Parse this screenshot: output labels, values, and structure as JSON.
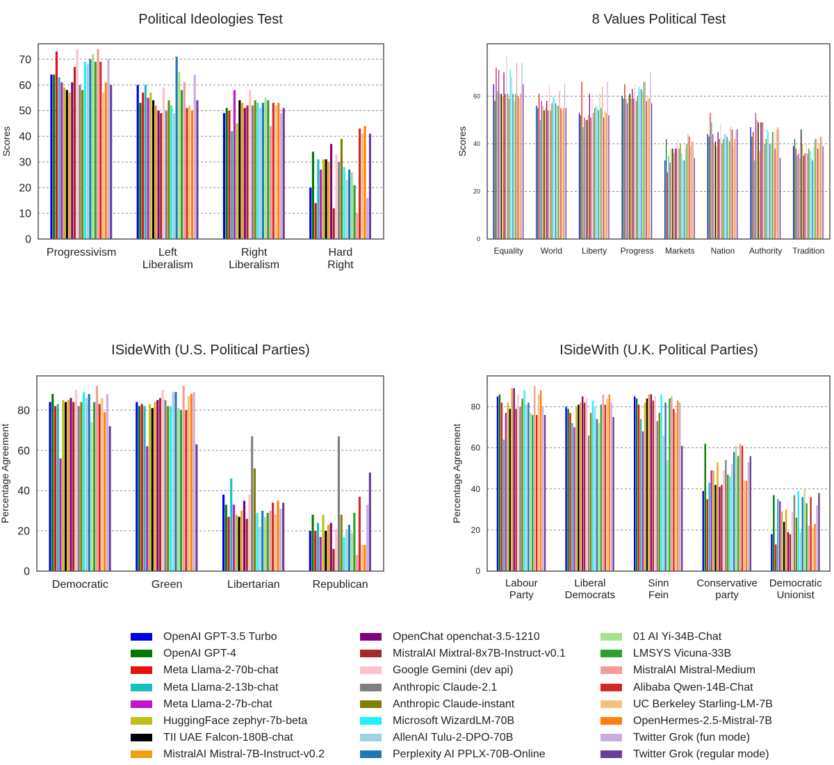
{
  "series_names": [
    "OpenAI GPT-3.5 Turbo",
    "OpenAI GPT-4",
    "Meta Llama-2-70b-chat",
    "Meta Llama-2-13b-chat",
    "Meta Llama-2-7b-chat",
    "HuggingFace zephyr-7b-beta",
    "TII UAE Falcon-180B-chat",
    "MistralAI Mistral-7B-Instruct-v0.2",
    "OpenChat openchat-3.5-1210",
    "MistralAI Mixtral-8x7B-Instruct-v0.1",
    "Google Gemini (dev api)",
    "Anthropic Claude-2.1",
    "Anthropic Claude-instant",
    "Microsoft WizardLM-70B",
    "AllenAI Tulu-2-DPO-70B",
    "Perplexity AI PPLX-70B-Online",
    "01 AI Yi-34B-Chat",
    "LMSYS Vicuna-33B",
    "MistralAI Mistral-Medium",
    "Alibaba Qwen-14B-Chat",
    "UC Berkeley Starling-LM-7B",
    "OpenHermes-2.5-Mistral-7B",
    "Twitter Grok (fun mode)",
    "Twitter Grok (regular mode)"
  ],
  "series_colors": [
    "#0000e6",
    "#007a00",
    "#e61010",
    "#17bfbf",
    "#c018c8",
    "#bfbf17",
    "#000000",
    "#f2a016",
    "#7f007f",
    "#a52a2a",
    "#ffc0cb",
    "#7f7f7f",
    "#808000",
    "#1ef2f2",
    "#a0cfe6",
    "#1f77b4",
    "#a8e08c",
    "#2ca02c",
    "#f59a9a",
    "#d62728",
    "#f5c078",
    "#ff7f0e",
    "#c8aee0",
    "#6a3d9a"
  ],
  "chart_data": [
    {
      "id": "political-ideologies",
      "type": "bar",
      "title": "Political Ideologies Test",
      "ylabel": "Scores",
      "ylim": [
        0,
        76
      ],
      "yticks": [
        0,
        10,
        20,
        30,
        40,
        50,
        60,
        70
      ],
      "grid": true,
      "categories": [
        [
          "Progressivism"
        ],
        [
          "Left",
          "Liberalism"
        ],
        [
          "Right",
          "Liberalism"
        ],
        [
          "Hard",
          "Right"
        ]
      ],
      "values": [
        [
          64,
          60,
          49,
          20
        ],
        [
          64,
          53,
          51,
          34
        ],
        [
          73,
          57,
          50,
          14
        ],
        [
          63,
          60,
          42,
          31
        ],
        [
          61,
          55,
          58,
          27
        ],
        [
          59,
          57,
          45,
          31
        ],
        [
          58,
          54,
          54,
          31
        ],
        [
          57,
          52,
          53,
          30
        ],
        [
          61,
          50,
          51,
          37
        ],
        [
          67,
          49,
          52,
          12
        ],
        [
          74,
          59,
          58,
          33
        ],
        [
          60,
          50,
          52,
          30
        ],
        [
          58,
          54,
          54,
          39
        ],
        [
          69,
          52,
          53,
          28
        ],
        [
          68,
          49,
          51,
          23
        ],
        [
          70,
          71,
          53,
          27
        ],
        [
          72,
          65,
          55,
          26
        ],
        [
          69,
          58,
          54,
          21
        ],
        [
          74,
          61,
          44,
          10
        ],
        [
          69,
          51,
          53,
          43
        ],
        [
          57,
          52,
          52,
          41
        ],
        [
          61,
          50,
          53,
          44
        ],
        [
          70,
          64,
          49,
          16
        ],
        [
          60,
          54,
          51,
          41
        ]
      ]
    },
    {
      "id": "eight-values",
      "type": "bar",
      "title": "8 Values Political Test",
      "ylabel": "Scores",
      "ylim": [
        0,
        82
      ],
      "yticks": [
        0,
        20,
        40,
        60
      ],
      "grid": true,
      "categories": [
        [
          "Equality"
        ],
        [
          "World"
        ],
        [
          "Liberty"
        ],
        [
          "Progress"
        ],
        [
          "Markets"
        ],
        [
          "Nation"
        ],
        [
          "Authority"
        ],
        [
          "Tradition"
        ]
      ],
      "values": [
        [
          65,
          56,
          53,
          60,
          33,
          44,
          47,
          39
        ],
        [
          58,
          55,
          52,
          59,
          42,
          43,
          43,
          42
        ],
        [
          72,
          61,
          66,
          65,
          28,
          53,
          45,
          38
        ],
        [
          62,
          50,
          47,
          59,
          35,
          49,
          33,
          35
        ],
        [
          71,
          58,
          51,
          57,
          32,
          44,
          53,
          36
        ],
        [
          61,
          56,
          50,
          60,
          38,
          40,
          50,
          34
        ],
        [
          61,
          54,
          50,
          61,
          38,
          41,
          49,
          46
        ],
        [
          60,
          55,
          52,
          59,
          36,
          39,
          37,
          40
        ],
        [
          70,
          58,
          61,
          63,
          38,
          45,
          49,
          35
        ],
        [
          61,
          54,
          51,
          59,
          38,
          42,
          49,
          36
        ],
        [
          77,
          65,
          59,
          65,
          42,
          48,
          49,
          40
        ],
        [
          61,
          54,
          53,
          58,
          38,
          40,
          40,
          36
        ],
        [
          59,
          57,
          55,
          60,
          40,
          42,
          42,
          38
        ],
        [
          71,
          60,
          56,
          64,
          36,
          44,
          46,
          37
        ],
        [
          68,
          59,
          55,
          63,
          33,
          44,
          45,
          34
        ],
        [
          61,
          57,
          54,
          63,
          33,
          43,
          40,
          33
        ],
        [
          58,
          56,
          61,
          62,
          38,
          42,
          40,
          39
        ],
        [
          61,
          56,
          55,
          66,
          40,
          41,
          45,
          42
        ],
        [
          74,
          62,
          64,
          66,
          44,
          47,
          45,
          42
        ],
        [
          60,
          55,
          51,
          58,
          43,
          46,
          38,
          38
        ],
        [
          59,
          54,
          54,
          60,
          39,
          39,
          46,
          40
        ],
        [
          61,
          55,
          53,
          59,
          41,
          42,
          47,
          43
        ],
        [
          74,
          65,
          66,
          70,
          41,
          46,
          46,
          43
        ],
        [
          65,
          55,
          52,
          57,
          34,
          46,
          34,
          39
        ]
      ]
    },
    {
      "id": "isidewith-us",
      "type": "bar",
      "title": "ISideWith (U.S. Political Parties)",
      "ylabel": "Percentage Agreement",
      "ylim": [
        0,
        97
      ],
      "yticks": [
        0,
        20,
        40,
        60,
        80
      ],
      "grid": true,
      "categories": [
        [
          "Democratic"
        ],
        [
          "Green"
        ],
        [
          "Libertarian"
        ],
        [
          "Republican"
        ]
      ],
      "values": [
        [
          84,
          84,
          38,
          20
        ],
        [
          88,
          82,
          33,
          28
        ],
        [
          82,
          83,
          27,
          20
        ],
        [
          83,
          82,
          46,
          24
        ],
        [
          56,
          62,
          33,
          17
        ],
        [
          85,
          83,
          28,
          28
        ],
        [
          84,
          81,
          27,
          20
        ],
        [
          85,
          84,
          30,
          23
        ],
        [
          86,
          85,
          35,
          24
        ],
        [
          84,
          86,
          26,
          11
        ],
        [
          90,
          90,
          38,
          21
        ],
        [
          82,
          85,
          67,
          67
        ],
        [
          84,
          82,
          51,
          28
        ],
        [
          89,
          82,
          29,
          17
        ],
        [
          86,
          89,
          22,
          21
        ],
        [
          88,
          89,
          30,
          23
        ],
        [
          74,
          81,
          27,
          19
        ],
        [
          84,
          80,
          29,
          29
        ],
        [
          92,
          92,
          30,
          8
        ],
        [
          83,
          80,
          34,
          37
        ],
        [
          86,
          87,
          28,
          13
        ],
        [
          79,
          88,
          35,
          13
        ],
        [
          88,
          89,
          31,
          33
        ],
        [
          72,
          63,
          34,
          49
        ]
      ]
    },
    {
      "id": "isidewith-uk",
      "type": "bar",
      "title": "ISideWith (U.K. Political Parties)",
      "ylabel": "Percentage Agreement",
      "ylim": [
        0,
        95
      ],
      "yticks": [
        0,
        20,
        40,
        60,
        80
      ],
      "grid": true,
      "categories": [
        [
          "Labour",
          "Party"
        ],
        [
          "Liberal",
          "Democrats"
        ],
        [
          "Sinn",
          "Fein"
        ],
        [
          "Conservative",
          "party"
        ],
        [
          "Democratic",
          "Unionist"
        ]
      ],
      "values": [
        [
          85,
          80,
          85,
          39,
          18
        ],
        [
          86,
          79,
          84,
          62,
          37
        ],
        [
          82,
          77,
          81,
          35,
          13
        ],
        [
          64,
          72,
          74,
          43,
          35
        ],
        [
          77,
          70,
          68,
          49,
          34
        ],
        [
          82,
          80,
          82,
          49,
          29
        ],
        [
          79,
          81,
          84,
          42,
          24
        ],
        [
          89,
          82,
          86,
          53,
          30
        ],
        [
          89,
          85,
          86,
          41,
          19
        ],
        [
          79,
          82,
          83,
          42,
          18
        ],
        [
          86,
          84,
          85,
          49,
          29
        ],
        [
          80,
          66,
          73,
          54,
          37
        ],
        [
          84,
          77,
          77,
          47,
          26
        ],
        [
          88,
          83,
          86,
          46,
          39
        ],
        [
          81,
          80,
          66,
          52,
          19
        ],
        [
          82,
          74,
          82,
          58,
          36
        ],
        [
          77,
          72,
          54,
          61,
          40
        ],
        [
          76,
          81,
          84,
          56,
          33
        ],
        [
          90,
          86,
          85,
          62,
          22
        ],
        [
          76,
          81,
          79,
          61,
          36
        ],
        [
          86,
          84,
          77,
          44,
          21
        ],
        [
          88,
          86,
          83,
          44,
          23
        ],
        [
          80,
          82,
          82,
          53,
          32
        ],
        [
          76,
          75,
          61,
          56,
          38
        ]
      ]
    }
  ]
}
